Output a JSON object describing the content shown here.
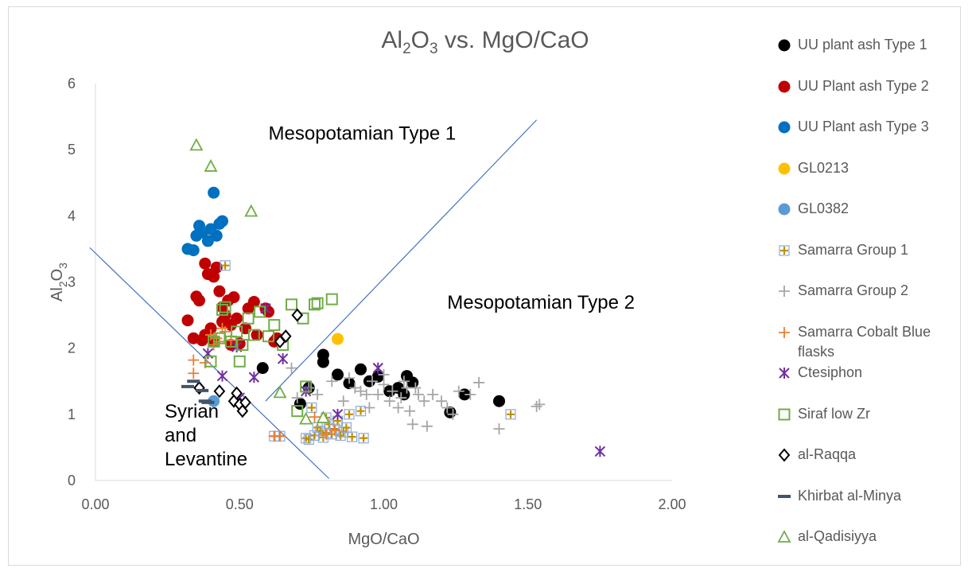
{
  "chart_data": {
    "type": "scatter",
    "title": "Al2O3 vs. MgO/CaO",
    "title_parts": {
      "main_a": "Al",
      "sub_a": "2",
      "main_b": "O",
      "sub_b": "3",
      "rest": " vs. MgO/CaO"
    },
    "xlabel": "MgO/CaO",
    "ylabel": "Al2O3",
    "ylabel_parts": {
      "main_a": "Al",
      "sub_a": "2",
      "main_b": "O",
      "sub_b": "3"
    },
    "xlim": [
      0,
      2
    ],
    "ylim": [
      0,
      6
    ],
    "x_ticks": [
      "0.00",
      "0.50",
      "1.00",
      "1.50",
      "2.00"
    ],
    "x_tick_values": [
      0,
      0.5,
      1,
      1.5,
      2
    ],
    "y_ticks": [
      "0",
      "1",
      "2",
      "3",
      "4",
      "5",
      "6"
    ],
    "y_tick_values": [
      0,
      1,
      2,
      3,
      4,
      5,
      6
    ],
    "grid": false,
    "legend_position": "right",
    "region_labels": [
      {
        "lines": [
          "Mesopotamian Type 1"
        ],
        "x": 0.6,
        "y": 5.15
      },
      {
        "lines": [
          "Mesopotamian Type 2"
        ],
        "x": 1.22,
        "y": 2.6
      },
      {
        "lines": [
          "Syrian",
          "and",
          "Levantine"
        ],
        "x": 0.24,
        "y": 0.95
      }
    ],
    "boundary_lines": [
      {
        "x": [
          -0.02,
          0.81
        ],
        "y": [
          3.52,
          0.03
        ]
      },
      {
        "x": [
          0.59,
          1.53
        ],
        "y": [
          1.2,
          5.45
        ]
      }
    ],
    "series": [
      {
        "name": "UU plant ash Type 1",
        "marker": "circle",
        "color": "#000000",
        "x": [
          0.58,
          0.71,
          0.79,
          0.79,
          0.84,
          0.88,
          0.92,
          0.98,
          1.02,
          1.05,
          1.07,
          1.08,
          1.1,
          1.23,
          1.28,
          1.4,
          0.74,
          0.95
        ],
        "y": [
          1.7,
          1.16,
          1.9,
          1.79,
          1.6,
          1.47,
          1.68,
          1.57,
          1.35,
          1.4,
          1.3,
          1.58,
          1.48,
          1.03,
          1.3,
          1.2,
          1.4,
          1.5
        ]
      },
      {
        "name": "UU Plant ash Type 2",
        "marker": "circle",
        "color": "#c00000",
        "x": [
          0.32,
          0.34,
          0.35,
          0.36,
          0.37,
          0.38,
          0.39,
          0.4,
          0.41,
          0.42,
          0.43,
          0.44,
          0.45,
          0.46,
          0.47,
          0.48,
          0.49,
          0.5,
          0.52,
          0.55,
          0.56,
          0.59,
          0.6,
          0.62,
          0.63,
          0.38,
          0.41,
          0.44,
          0.47,
          0.53
        ],
        "y": [
          2.42,
          2.15,
          2.78,
          2.72,
          2.12,
          3.28,
          3.12,
          2.3,
          3.08,
          3.22,
          2.86,
          2.62,
          2.5,
          2.72,
          2.05,
          2.77,
          2.45,
          2.07,
          2.3,
          2.7,
          2.2,
          2.6,
          2.55,
          2.1,
          2.15,
          2.2,
          2.1,
          2.4,
          2.35,
          2.6
        ]
      },
      {
        "name": "UU Plant ash Type 3",
        "marker": "circle",
        "color": "#0070c0",
        "x": [
          0.32,
          0.34,
          0.35,
          0.36,
          0.37,
          0.39,
          0.4,
          0.41,
          0.42,
          0.43,
          0.44
        ],
        "y": [
          3.5,
          3.48,
          3.7,
          3.85,
          3.75,
          3.62,
          3.8,
          4.35,
          3.7,
          3.88,
          3.92
        ]
      },
      {
        "name": "GL0213",
        "marker": "circle",
        "color": "#ffc000",
        "x": [
          0.84
        ],
        "y": [
          2.14
        ]
      },
      {
        "name": "GL0382",
        "marker": "circle",
        "color": "#5b9bd5",
        "x": [
          0.41
        ],
        "y": [
          1.2
        ]
      },
      {
        "name": "Samarra Group 1",
        "marker": "square-plus",
        "color": "#bf9000",
        "x": [
          0.45,
          0.62,
          0.64,
          0.73,
          0.74,
          0.76,
          0.77,
          0.78,
          0.79,
          0.8,
          0.81,
          0.82,
          0.83,
          0.84,
          0.85,
          0.86,
          0.87,
          0.88,
          0.89,
          0.92,
          0.93,
          1.44,
          0.75,
          0.8
        ],
        "y": [
          3.25,
          0.67,
          0.67,
          0.64,
          0.62,
          0.68,
          0.8,
          0.75,
          0.65,
          0.72,
          0.85,
          0.7,
          0.78,
          0.9,
          0.68,
          0.73,
          0.8,
          1.0,
          0.66,
          1.05,
          0.64,
          1.0,
          1.1,
          0.95
        ]
      },
      {
        "name": "Samarra Group 2",
        "marker": "plus",
        "color": "#a6a6a6",
        "x": [
          0.68,
          0.7,
          0.74,
          0.77,
          0.82,
          0.86,
          0.88,
          0.9,
          0.92,
          0.94,
          0.96,
          0.98,
          1.0,
          1.02,
          1.03,
          1.05,
          1.06,
          1.08,
          1.1,
          1.12,
          1.14,
          1.15,
          1.17,
          1.2,
          1.22,
          1.24,
          1.26,
          1.3,
          1.33,
          1.4,
          1.53,
          1.54,
          0.95,
          1.0,
          1.07,
          1.09,
          1.11
        ],
        "y": [
          1.7,
          1.25,
          1.4,
          1.3,
          1.5,
          1.2,
          1.55,
          1.4,
          1.35,
          1.3,
          1.5,
          1.3,
          1.45,
          1.2,
          1.35,
          1.1,
          1.25,
          1.4,
          0.85,
          1.3,
          1.2,
          0.82,
          1.3,
          1.2,
          1.1,
          1.0,
          1.35,
          1.3,
          1.48,
          0.78,
          1.12,
          1.15,
          1.1,
          1.6,
          1.5,
          1.05,
          1.4
        ]
      },
      {
        "name": "Samarra Cobalt Blue flasks",
        "marker": "plus",
        "color": "#ed7d31",
        "x": [
          0.34,
          0.34,
          0.38,
          0.4,
          0.41,
          0.42,
          0.43,
          0.44,
          0.45,
          0.47,
          0.62,
          0.64,
          0.76,
          0.8,
          0.83
        ],
        "y": [
          1.62,
          1.82,
          1.78,
          2.2,
          2.05,
          2.15,
          2.1,
          2.3,
          2.25,
          2.12,
          0.67,
          0.67,
          0.96,
          0.7,
          0.76
        ]
      },
      {
        "name": "Ctesiphon",
        "marker": "star",
        "color": "#7030a0",
        "x": [
          0.39,
          0.44,
          0.49,
          0.55,
          0.59,
          0.65,
          0.73,
          0.84,
          0.98,
          1.75,
          0.5
        ],
        "y": [
          1.92,
          1.58,
          2.02,
          1.56,
          2.6,
          1.84,
          1.35,
          1.0,
          1.7,
          0.44,
          1.25
        ]
      },
      {
        "name": "Siraf low Zr",
        "marker": "square",
        "color": "#70ad47",
        "x": [
          0.4,
          0.41,
          0.43,
          0.44,
          0.45,
          0.47,
          0.49,
          0.5,
          0.51,
          0.53,
          0.55,
          0.57,
          0.6,
          0.62,
          0.65,
          0.68,
          0.72,
          0.76,
          0.77,
          0.82,
          0.7,
          0.73
        ],
        "y": [
          1.8,
          2.1,
          2.15,
          2.58,
          2.62,
          2.1,
          2.25,
          1.8,
          2.05,
          2.45,
          2.2,
          2.55,
          2.18,
          2.35,
          2.05,
          2.66,
          2.45,
          2.66,
          2.68,
          2.74,
          1.05,
          1.42
        ]
      },
      {
        "name": "al-Raqqa",
        "marker": "diamond",
        "color": "#000000",
        "x": [
          0.36,
          0.43,
          0.48,
          0.49,
          0.5,
          0.51,
          0.52,
          0.64,
          0.66,
          0.7
        ],
        "y": [
          1.4,
          1.35,
          1.2,
          1.32,
          1.15,
          1.05,
          1.18,
          2.1,
          2.18,
          2.5
        ]
      },
      {
        "name": "Khirbat al-Minya",
        "marker": "dash",
        "color": "#44546a",
        "x": [
          0.32,
          0.34,
          0.37,
          0.38,
          0.39
        ],
        "y": [
          1.42,
          1.5,
          1.36,
          1.2,
          1.18
        ]
      },
      {
        "name": "al-Qadisiyya",
        "marker": "triangle",
        "color": "#70ad47",
        "x": [
          0.35,
          0.4,
          0.54,
          0.64,
          0.73,
          0.79
        ],
        "y": [
          5.07,
          4.75,
          4.07,
          1.33,
          0.93,
          0.95
        ]
      }
    ]
  }
}
